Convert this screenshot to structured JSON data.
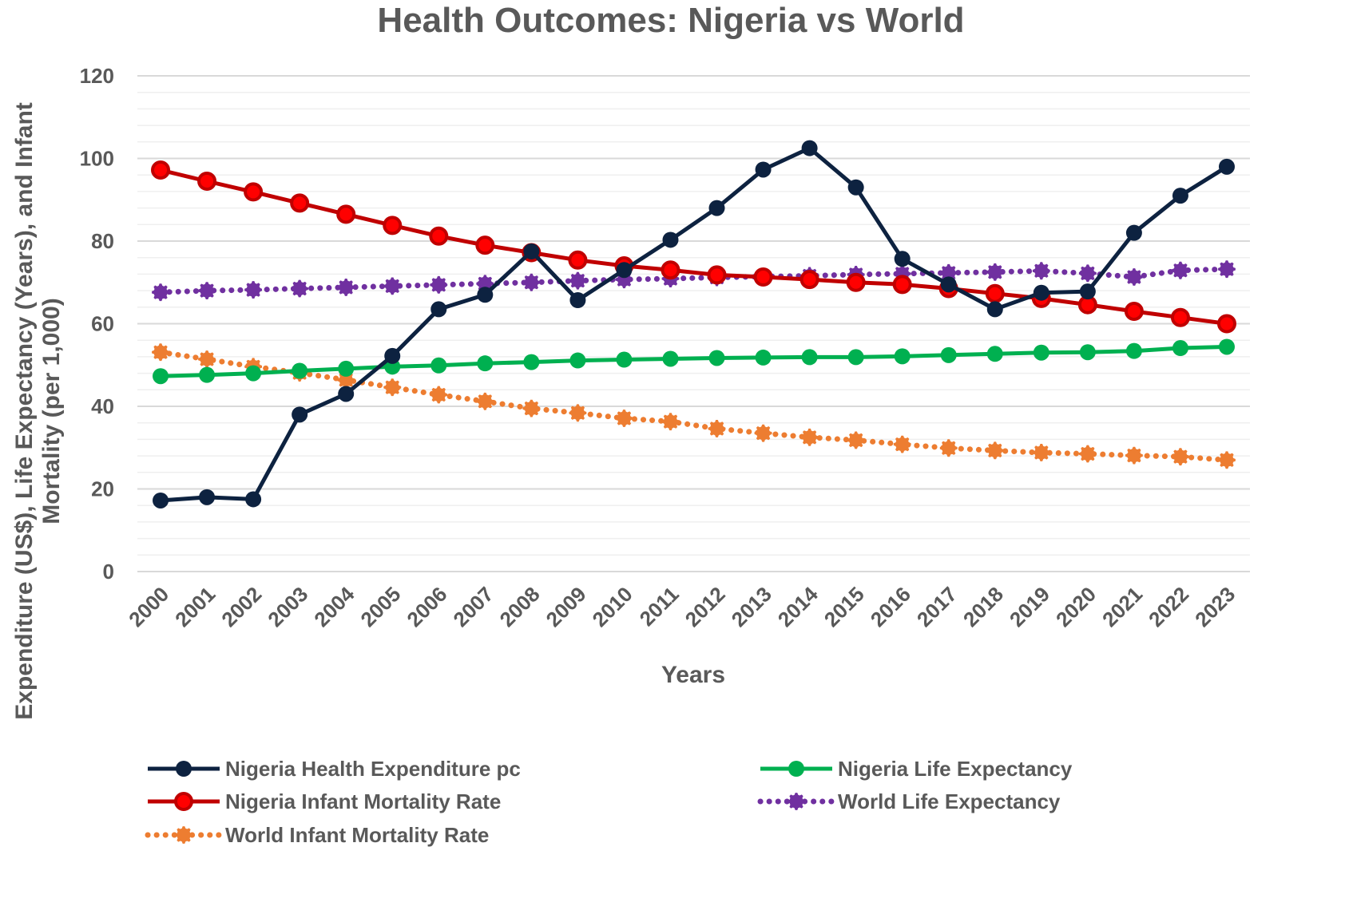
{
  "chart_data": {
    "type": "line",
    "title": "Health Outcomes: Nigeria vs World",
    "xlabel": "Years",
    "ylabel_lines": [
      "Expenditure (US$), Life Expectancy (Years), and Infant",
      "Mortality (per 1,000)"
    ],
    "ylabel": "Expenditure (US$), Life Expectancy (Years), and Infant Mortality (per 1,000)",
    "ylim": [
      0,
      120
    ],
    "y_major_ticks": [
      0,
      20,
      40,
      60,
      80,
      100,
      120
    ],
    "y_tick_labels": [
      "0",
      "20",
      "40",
      "60",
      "80",
      "100",
      "120"
    ],
    "y_minor_step": 4,
    "grid": true,
    "legend_position": "bottom",
    "x": [
      "2000",
      "2001",
      "2002",
      "2003",
      "2004",
      "2005",
      "2006",
      "2007",
      "2008",
      "2009",
      "2010",
      "2011",
      "2012",
      "2013",
      "2014",
      "2015",
      "2016",
      "2017",
      "2018",
      "2019",
      "2020",
      "2021",
      "2022",
      "2023"
    ],
    "series": [
      {
        "name": "Nigeria Health Expenditure pc",
        "color": "#0d2240",
        "style": "solid",
        "marker": "circle",
        "values": [
          17.2,
          18.0,
          17.5,
          38.0,
          43.0,
          52.2,
          63.5,
          67.0,
          77.5,
          65.7,
          73.0,
          80.3,
          88.0,
          97.3,
          102.5,
          93.0,
          75.7,
          69.5,
          63.5,
          67.5,
          67.8,
          82.0,
          91.0,
          98.0
        ]
      },
      {
        "name": "Nigeria Infant Mortality Rate",
        "color": "#c00000",
        "marker_fill": "#ff0000",
        "style": "solid",
        "marker": "circle",
        "values": [
          97.2,
          94.5,
          91.9,
          89.2,
          86.5,
          83.8,
          81.2,
          79.0,
          77.2,
          75.4,
          74.0,
          73.0,
          71.8,
          71.3,
          70.7,
          70.0,
          69.5,
          68.5,
          67.3,
          66.1,
          64.6,
          63.0,
          61.5,
          60.0
        ]
      },
      {
        "name": "World Infant Mortality Rate",
        "color": "#ed7d31",
        "style": "dotted",
        "marker": "gear",
        "values": [
          53.1,
          51.4,
          49.6,
          48.1,
          46.4,
          44.6,
          42.8,
          41.2,
          39.5,
          38.4,
          37.1,
          36.3,
          34.6,
          33.5,
          32.5,
          31.8,
          30.8,
          29.9,
          29.3,
          28.8,
          28.5,
          28.1,
          27.8,
          27.0
        ]
      },
      {
        "name": "Nigeria Life Expectancy",
        "color": "#00b050",
        "style": "solid",
        "marker": "circle",
        "values": [
          47.3,
          47.6,
          48.0,
          48.6,
          49.1,
          49.6,
          49.9,
          50.4,
          50.7,
          51.1,
          51.3,
          51.5,
          51.7,
          51.8,
          51.9,
          51.9,
          52.1,
          52.4,
          52.7,
          53.0,
          53.1,
          53.4,
          54.1,
          54.4
        ]
      },
      {
        "name": "World Life Expectancy",
        "color": "#7030a0",
        "style": "dotted",
        "marker": "gear",
        "values": [
          67.6,
          68.0,
          68.2,
          68.5,
          68.8,
          69.1,
          69.4,
          69.7,
          70.0,
          70.4,
          70.7,
          70.9,
          71.2,
          71.4,
          71.6,
          71.9,
          72.1,
          72.3,
          72.5,
          72.8,
          72.2,
          71.3,
          72.9,
          73.2
        ]
      }
    ],
    "legend_order": [
      0,
      3,
      1,
      4,
      2
    ]
  }
}
